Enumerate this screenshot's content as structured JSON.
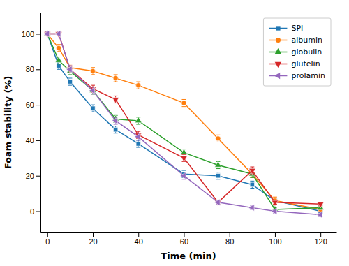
{
  "chart_data": {
    "type": "line",
    "xlabel": "Time (min)",
    "ylabel": "Foam stability (%)",
    "x": [
      0,
      5,
      10,
      20,
      30,
      40,
      60,
      75,
      90,
      100,
      120
    ],
    "series": [
      {
        "name": "SPI",
        "marker": "square",
        "values": [
          100,
          82,
          73,
          58,
          46,
          38,
          21,
          20,
          15,
          6,
          0
        ],
        "errors": [
          1,
          2,
          2,
          2,
          2,
          2,
          2,
          2,
          2,
          1,
          1
        ]
      },
      {
        "name": "albumin",
        "marker": "circle",
        "values": [
          100,
          92,
          81,
          79,
          75,
          71,
          61,
          41,
          21,
          6,
          1
        ],
        "errors": [
          1,
          2,
          2,
          2,
          2,
          2,
          2,
          2,
          2,
          2,
          1
        ]
      },
      {
        "name": "globulin",
        "marker": "triangle-up",
        "values": [
          100,
          85,
          79,
          68,
          52,
          51,
          33,
          26,
          21,
          1,
          2
        ],
        "errors": [
          1,
          2,
          2,
          2,
          2,
          2,
          2,
          2,
          2,
          1,
          1
        ]
      },
      {
        "name": "glutelin",
        "marker": "triangle-down",
        "values": [
          100,
          100,
          80,
          69,
          63,
          43,
          30,
          5,
          23,
          5,
          4
        ],
        "errors": [
          1,
          1,
          2,
          2,
          2,
          2,
          2,
          1,
          2,
          1,
          1
        ]
      },
      {
        "name": "prolamin",
        "marker": "triangle-left",
        "values": [
          100,
          100,
          80,
          68,
          51,
          42,
          20,
          5,
          2,
          0,
          -2
        ],
        "errors": [
          1,
          1,
          2,
          2,
          2,
          2,
          2,
          1,
          1,
          1,
          1
        ]
      }
    ],
    "xlim": [
      -3,
      127
    ],
    "ylim": [
      -12,
      112
    ],
    "xticks": [
      0,
      20,
      40,
      60,
      80,
      100,
      120
    ],
    "yticks": [
      0,
      20,
      40,
      60,
      80,
      100
    ],
    "grid": false,
    "legend": "upper right"
  }
}
